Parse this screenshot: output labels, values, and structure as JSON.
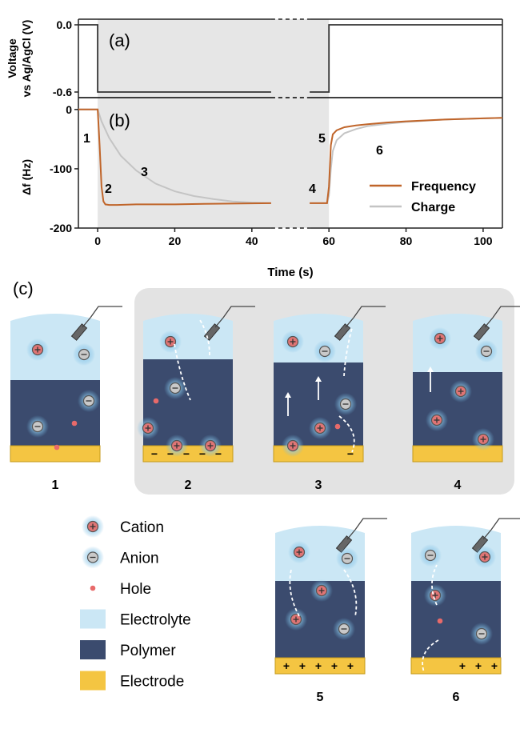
{
  "panel_labels": {
    "a": "(a)",
    "b": "(b)",
    "c": "(c)"
  },
  "colors": {
    "frequency": "#c0652a",
    "charge": "#c4c4c4",
    "shade": "#e6e6e6",
    "electrolyte": "#cbe7f5",
    "polymer": "#3b4b6e",
    "electrode": "#f4c542",
    "hole": "#e86a6a"
  },
  "chart_data": [
    {
      "type": "line",
      "panel": "(a)",
      "ylabel": "Voltage\nvs Ag/AgCl (V)",
      "y_ticks": [
        "0.0",
        "-0.6"
      ],
      "ylim": [
        -0.65,
        0.05
      ],
      "xlim": [
        -5,
        105
      ],
      "axis_break": [
        45,
        55
      ],
      "series": [
        {
          "points": [
            [
              -5,
              0
            ],
            [
              0,
              0
            ],
            [
              0,
              -0.6
            ],
            [
              45,
              -0.6
            ]
          ]
        },
        {
          "points": [
            [
              55,
              -0.6
            ],
            [
              60,
              -0.6
            ],
            [
              60,
              0
            ],
            [
              105,
              0
            ]
          ]
        }
      ]
    },
    {
      "type": "line",
      "panel": "(b)",
      "xlabel": "Time (s)",
      "ylabel": "Δf (Hz)",
      "x_ticks": [
        "0",
        "20",
        "40",
        "60",
        "80",
        "100"
      ],
      "y_ticks": [
        "0",
        "-100",
        "-200"
      ],
      "xlim": [
        -5,
        105
      ],
      "ylim": [
        -200,
        20
      ],
      "axis_break": [
        45,
        55
      ],
      "shaded_region": [
        0,
        60
      ],
      "legend": "bottom-right",
      "series": [
        {
          "name": "Frequency",
          "color": "#c0652a",
          "x": [
            -5,
            0,
            0.5,
            1,
            1.5,
            2,
            3,
            5,
            10,
            20,
            30,
            45,
            55,
            59.5,
            60,
            60.5,
            61,
            62,
            64,
            67,
            70,
            75,
            80,
            90,
            100,
            105
          ],
          "y": [
            0,
            0,
            -60,
            -130,
            -155,
            -160,
            -161,
            -161,
            -160,
            -160,
            -159,
            -158,
            -158,
            -158,
            -130,
            -60,
            -42,
            -35,
            -30,
            -27,
            -25,
            -22,
            -20,
            -17,
            -15,
            -14
          ]
        },
        {
          "name": "Charge",
          "color": "#c4c4c4",
          "x": [
            -5,
            0,
            1,
            3,
            6,
            10,
            15,
            20,
            25,
            30,
            35,
            40,
            45,
            55,
            59.5,
            60,
            60.5,
            61,
            62,
            64,
            67,
            70,
            75,
            80,
            90,
            100,
            105
          ],
          "y": [
            0,
            0,
            -20,
            -48,
            -78,
            -103,
            -125,
            -138,
            -146,
            -151,
            -155,
            -157,
            -158,
            -158,
            -158,
            -145,
            -100,
            -70,
            -52,
            -40,
            -33,
            -28,
            -24,
            -21,
            -17,
            -15,
            -14
          ]
        }
      ],
      "annotations": [
        "1",
        "2",
        "3",
        "4",
        "5",
        "6"
      ]
    }
  ],
  "cells": [
    {
      "label": "1",
      "cations": [
        [
          34,
          28
        ]
      ],
      "anions": [
        [
          92,
          34
        ],
        [
          98,
          92
        ],
        [
          34,
          124
        ]
      ],
      "holes": [
        [
          80,
          120
        ],
        [
          58,
          150
        ]
      ],
      "charges": [],
      "arrows": [],
      "interface": 66
    },
    {
      "label": "2",
      "cations": [
        [
          34,
          18
        ],
        [
          230,
          126
        ],
        [
          196,
          148
        ],
        [
          266,
          148
        ]
      ],
      "anions": [
        [
          264,
          76
        ]
      ],
      "holes": [
        [
          240,
          92
        ]
      ],
      "charges": [
        "−",
        "−",
        "−",
        "−",
        "−"
      ],
      "arrows": [],
      "interface": 40
    },
    {
      "label": "3",
      "cations": [
        [
          24,
          18
        ],
        [
          58,
          126
        ],
        [
          24,
          148
        ]
      ],
      "anions": [
        [
          64,
          30
        ],
        [
          90,
          96
        ]
      ],
      "holes": [
        [
          80,
          124
        ]
      ],
      "charges": [
        "−"
      ],
      "arrows": [],
      "interface": 44
    },
    {
      "label": "4",
      "cations": [
        [
          34,
          14
        ],
        [
          60,
          80
        ],
        [
          30,
          116
        ],
        [
          88,
          140
        ]
      ],
      "anions": [
        [
          92,
          30
        ]
      ],
      "holes": [],
      "charges": [],
      "arrows": [],
      "interface": 56
    },
    {
      "label": "5",
      "cations": [
        [
          30,
          16
        ],
        [
          58,
          64
        ],
        [
          26,
          100
        ]
      ],
      "anions": [
        [
          90,
          24
        ],
        [
          86,
          112
        ]
      ],
      "holes": [],
      "charges": [
        "+",
        "+",
        "+",
        "+",
        "+"
      ],
      "arrows": [],
      "interface": 52
    },
    {
      "label": "6",
      "cations": [
        [
          92,
          22
        ],
        [
          30,
          70
        ]
      ],
      "anions": [
        [
          24,
          20
        ],
        [
          88,
          118
        ]
      ],
      "holes": [
        [
          36,
          102
        ]
      ],
      "charges": [
        "+",
        "+",
        "+"
      ],
      "arrows": [],
      "interface": 52
    }
  ],
  "legend_c": [
    {
      "key": "cation",
      "label": "Cation"
    },
    {
      "key": "anion",
      "label": "Anion"
    },
    {
      "key": "hole",
      "label": "Hole"
    },
    {
      "key": "electrolyte",
      "label": "Electrolyte"
    },
    {
      "key": "polymer",
      "label": "Polymer"
    },
    {
      "key": "electrode",
      "label": "Electrode"
    }
  ]
}
